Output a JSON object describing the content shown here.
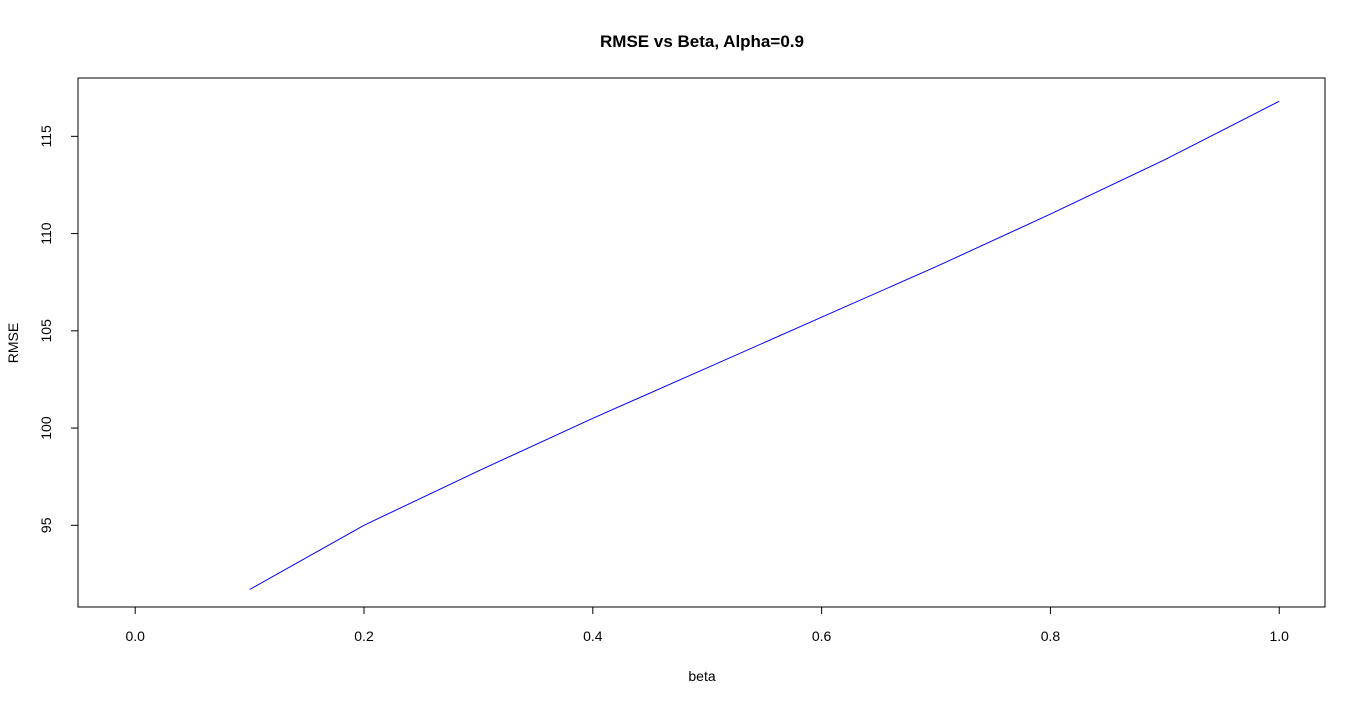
{
  "chart_data": {
    "type": "line",
    "title": "RMSE vs Beta, Alpha=0.9",
    "xlabel": "beta",
    "ylabel": "RMSE",
    "xlim": [
      -0.05,
      1.04
    ],
    "ylim": [
      90.8,
      118.0
    ],
    "xticks": [
      0.0,
      0.2,
      0.4,
      0.6,
      0.8,
      1.0
    ],
    "xtick_labels": [
      "0.0",
      "0.2",
      "0.4",
      "0.6",
      "0.8",
      "1.0"
    ],
    "yticks": [
      95,
      100,
      105,
      110,
      115
    ],
    "ytick_labels": [
      "95",
      "100",
      "105",
      "110",
      "115"
    ],
    "grid": false,
    "series": [
      {
        "color": "#0000ff",
        "x": [
          0.1,
          0.2,
          0.3,
          0.4,
          0.5,
          0.6,
          0.7,
          0.8,
          0.9,
          1.0
        ],
        "y": [
          91.7,
          95.0,
          97.8,
          100.5,
          103.1,
          105.7,
          108.3,
          111.0,
          113.8,
          116.8
        ]
      }
    ]
  }
}
